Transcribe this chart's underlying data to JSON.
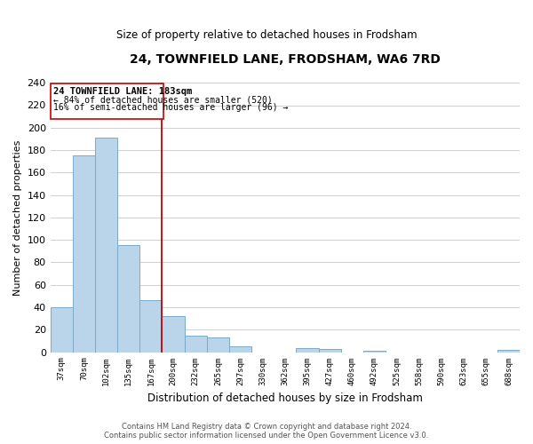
{
  "title": "24, TOWNFIELD LANE, FRODSHAM, WA6 7RD",
  "subtitle": "Size of property relative to detached houses in Frodsham",
  "xlabel": "Distribution of detached houses by size in Frodsham",
  "ylabel": "Number of detached properties",
  "bar_labels": [
    "37sqm",
    "70sqm",
    "102sqm",
    "135sqm",
    "167sqm",
    "200sqm",
    "232sqm",
    "265sqm",
    "297sqm",
    "330sqm",
    "362sqm",
    "395sqm",
    "427sqm",
    "460sqm",
    "492sqm",
    "525sqm",
    "558sqm",
    "590sqm",
    "623sqm",
    "655sqm",
    "688sqm"
  ],
  "bar_values": [
    40,
    175,
    191,
    95,
    46,
    32,
    15,
    13,
    5,
    0,
    0,
    4,
    3,
    0,
    1,
    0,
    0,
    0,
    0,
    0,
    2
  ],
  "bar_color": "#bad4ea",
  "bar_edge_color": "#7aaac8",
  "annotation_text_line1": "24 TOWNFIELD LANE: 183sqm",
  "annotation_text_line2": "← 84% of detached houses are smaller (520)",
  "annotation_text_line3": "16% of semi-detached houses are larger (96) →",
  "annotation_box_color": "#ffffff",
  "annotation_box_edge": "#cc0000",
  "vline_color": "#cc0000",
  "ylim": [
    0,
    240
  ],
  "yticks": [
    0,
    20,
    40,
    60,
    80,
    100,
    120,
    140,
    160,
    180,
    200,
    220,
    240
  ],
  "footer_line1": "Contains HM Land Registry data © Crown copyright and database right 2024.",
  "footer_line2": "Contains public sector information licensed under the Open Government Licence v3.0.",
  "bg_color": "#ffffff",
  "grid_color": "#c8c8c8"
}
